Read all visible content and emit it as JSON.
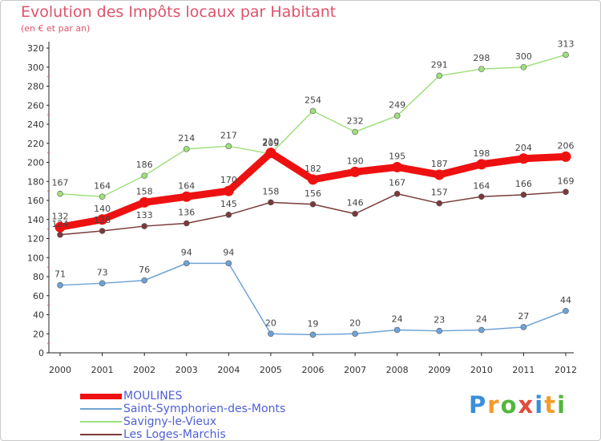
{
  "chart_data": {
    "type": "line",
    "title": "Evolution des Impôts locaux par Habitant",
    "subtitle": "(en € et par an)",
    "x": [
      "2000",
      "2001",
      "2002",
      "2003",
      "2004",
      "2005",
      "2006",
      "2007",
      "2008",
      "2009",
      "2010",
      "2011",
      "2012"
    ],
    "ylim": [
      0,
      320
    ],
    "yticks": [
      0,
      20,
      40,
      60,
      80,
      100,
      120,
      140,
      160,
      180,
      200,
      220,
      240,
      260,
      280,
      300,
      320
    ],
    "grid": false,
    "legend_position": "bottom-left",
    "series": [
      {
        "name": "MOULINES",
        "color": "#ee1111",
        "values": [
          132,
          140,
          158,
          164,
          170,
          210,
          182,
          190,
          195,
          187,
          198,
          204,
          206
        ]
      },
      {
        "name": "Saint-Symphorien-des-Monts",
        "color": "#6fa3d6",
        "values": [
          71,
          73,
          76,
          94,
          94,
          20,
          19,
          20,
          24,
          23,
          24,
          27,
          44
        ]
      },
      {
        "name": "Savigny-le-Vieux",
        "color": "#9ee07c",
        "values": [
          167,
          164,
          186,
          214,
          217,
          209,
          254,
          232,
          249,
          291,
          298,
          300,
          313
        ]
      },
      {
        "name": "Les Loges-Marchis",
        "color": "#7a3a3a",
        "values": [
          124,
          128,
          133,
          136,
          145,
          158,
          156,
          146,
          167,
          157,
          164,
          166,
          169
        ]
      }
    ]
  },
  "logo": {
    "letters": [
      "P",
      "r",
      "o",
      "x",
      "i",
      "t",
      "i"
    ]
  }
}
